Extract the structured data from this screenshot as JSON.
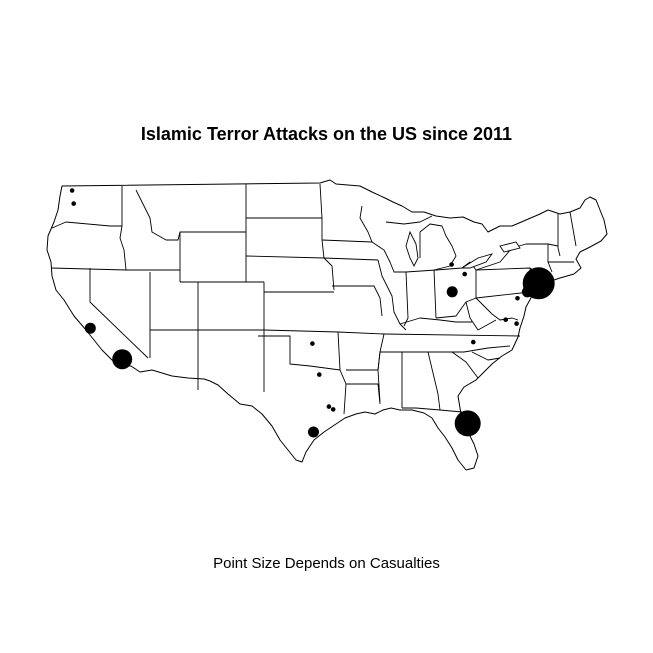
{
  "title": "Islamic Terror Attacks on the US since 2011",
  "subtitle": "Point Size Depends on Casualties",
  "colors": {
    "background": "#ffffff",
    "ink": "#000000"
  },
  "map": {
    "region": "Contiguous United States",
    "projection": "equirectangular",
    "lon_range": [
      -125,
      -66.9
    ],
    "lat_range": [
      24.5,
      49.4
    ]
  },
  "attacks": [
    {
      "lon": -74.0,
      "lat": 40.7,
      "size": 5
    },
    {
      "lon": -81.38,
      "lat": 28.54,
      "size": 4
    },
    {
      "lon": -117.29,
      "lat": 34.11,
      "size": 3
    },
    {
      "lon": -75.17,
      "lat": 39.95,
      "size": 2
    },
    {
      "lon": -82.99,
      "lat": 39.96,
      "size": 2
    },
    {
      "lon": -120.6,
      "lat": 36.8,
      "size": 2
    },
    {
      "lon": -97.4,
      "lat": 27.8,
      "size": 2
    },
    {
      "lon": -77.43,
      "lat": 37.54,
      "size": 1
    },
    {
      "lon": -122.33,
      "lat": 47.61,
      "size": 1
    },
    {
      "lon": -122.5,
      "lat": 48.75,
      "size": 1
    },
    {
      "lon": -83.05,
      "lat": 42.33,
      "size": 1
    },
    {
      "lon": -97.52,
      "lat": 35.47,
      "size": 1
    },
    {
      "lon": -96.8,
      "lat": 32.78,
      "size": 1
    },
    {
      "lon": -95.36,
      "lat": 29.76,
      "size": 1
    },
    {
      "lon": -95.8,
      "lat": 30.0,
      "size": 1
    },
    {
      "lon": -81.69,
      "lat": 41.5,
      "size": 1
    },
    {
      "lon": -76.2,
      "lat": 39.4,
      "size": 1
    },
    {
      "lon": -76.3,
      "lat": 37.2,
      "size": 1
    },
    {
      "lon": -80.8,
      "lat": 35.6,
      "size": 1
    }
  ]
}
